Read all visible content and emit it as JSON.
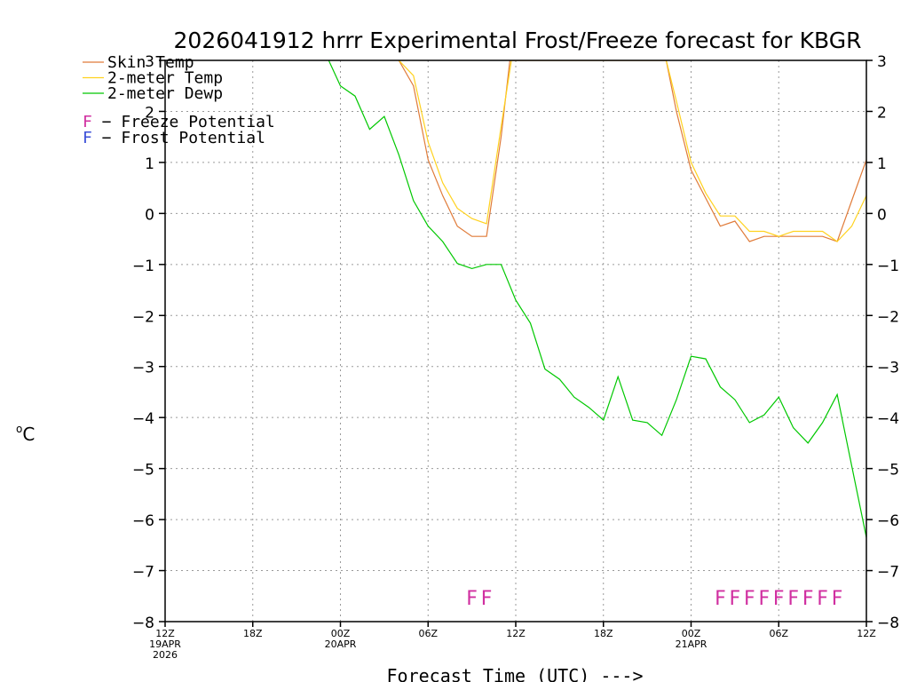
{
  "chart_data": {
    "type": "line",
    "title": "2026041912 hrrr Experimental Frost/Freeze forecast for KBGR",
    "xlabel": "Forecast Time (UTC) --->",
    "ylabel": "°C",
    "ylabel_base": "C",
    "ylabel_sup": "o",
    "ylim": [
      -8,
      3
    ],
    "xlim": [
      0,
      48
    ],
    "grid": true,
    "y_ticks": [
      "3",
      "2",
      "1",
      "0",
      "−1",
      "−2",
      "−3",
      "−4",
      "−5",
      "−6",
      "−7",
      "−8"
    ],
    "y_tick_values": [
      3,
      2,
      1,
      0,
      -1,
      -2,
      -3,
      -4,
      -5,
      -6,
      -7,
      -8
    ],
    "x_ticks": [
      {
        "hour": 0,
        "lines": [
          "12Z",
          "19APR",
          "2026"
        ]
      },
      {
        "hour": 6,
        "lines": [
          "18Z"
        ]
      },
      {
        "hour": 12,
        "lines": [
          "00Z",
          "20APR"
        ]
      },
      {
        "hour": 18,
        "lines": [
          "06Z"
        ]
      },
      {
        "hour": 24,
        "lines": [
          "12Z"
        ]
      },
      {
        "hour": 30,
        "lines": [
          "18Z"
        ]
      },
      {
        "hour": 36,
        "lines": [
          "00Z",
          "21APR"
        ]
      },
      {
        "hour": 42,
        "lines": [
          "06Z"
        ]
      },
      {
        "hour": 48,
        "lines": [
          "12Z"
        ]
      }
    ],
    "series": [
      {
        "name": "Skin Temp",
        "color": "#e07b39",
        "points": [
          [
            16,
            3
          ],
          [
            17,
            2.5
          ],
          [
            18,
            1.05
          ],
          [
            19,
            0.35
          ],
          [
            20,
            -0.25
          ],
          [
            21,
            -0.45
          ],
          [
            22,
            -0.45
          ],
          [
            23,
            1.5
          ],
          [
            23.6,
            3
          ],
          [
            34.3,
            3
          ],
          [
            35,
            2.0
          ],
          [
            36,
            0.85
          ],
          [
            37,
            0.3
          ],
          [
            38,
            -0.25
          ],
          [
            39,
            -0.15
          ],
          [
            40,
            -0.55
          ],
          [
            41,
            -0.45
          ],
          [
            42,
            -0.45
          ],
          [
            43,
            -0.45
          ],
          [
            44,
            -0.45
          ],
          [
            45,
            -0.45
          ],
          [
            46,
            -0.55
          ],
          [
            47,
            0.25
          ],
          [
            48,
            1.05
          ]
        ]
      },
      {
        "name": "2-meter Temp",
        "color": "#ffd21f",
        "points": [
          [
            16,
            3
          ],
          [
            17,
            2.7
          ],
          [
            18,
            1.4
          ],
          [
            19,
            0.6
          ],
          [
            20,
            0.1
          ],
          [
            21,
            -0.1
          ],
          [
            22,
            -0.2
          ],
          [
            23,
            1.7
          ],
          [
            23.7,
            3
          ],
          [
            34.3,
            3
          ],
          [
            35,
            2.2
          ],
          [
            36,
            1.0
          ],
          [
            37,
            0.4
          ],
          [
            38,
            -0.05
          ],
          [
            39,
            -0.05
          ],
          [
            40,
            -0.35
          ],
          [
            41,
            -0.35
          ],
          [
            42,
            -0.45
          ],
          [
            43,
            -0.35
          ],
          [
            44,
            -0.35
          ],
          [
            45,
            -0.35
          ],
          [
            46,
            -0.55
          ],
          [
            47,
            -0.25
          ],
          [
            48,
            0.35
          ]
        ]
      },
      {
        "name": "2-meter Dewp",
        "color": "#00c800",
        "points": [
          [
            11.2,
            3
          ],
          [
            12,
            2.5
          ],
          [
            13,
            2.3
          ],
          [
            14,
            1.65
          ],
          [
            15,
            1.9
          ],
          [
            16,
            1.15
          ],
          [
            17,
            0.25
          ],
          [
            18,
            -0.25
          ],
          [
            19,
            -0.55
          ],
          [
            20,
            -0.98
          ],
          [
            21,
            -1.08
          ],
          [
            22,
            -1.0
          ],
          [
            23,
            -1.0
          ],
          [
            24,
            -1.7
          ],
          [
            25,
            -2.15
          ],
          [
            26,
            -3.05
          ],
          [
            27,
            -3.25
          ],
          [
            28,
            -3.6
          ],
          [
            29,
            -3.8
          ],
          [
            30,
            -4.05
          ],
          [
            31,
            -3.2
          ],
          [
            32,
            -4.05
          ],
          [
            33,
            -4.1
          ],
          [
            34,
            -4.35
          ],
          [
            35,
            -3.65
          ],
          [
            36,
            -2.8
          ],
          [
            37,
            -2.85
          ],
          [
            38,
            -3.4
          ],
          [
            39,
            -3.65
          ],
          [
            40,
            -4.1
          ],
          [
            41,
            -3.95
          ],
          [
            42,
            -3.6
          ],
          [
            43,
            -4.2
          ],
          [
            44,
            -4.5
          ],
          [
            45,
            -4.1
          ],
          [
            46,
            -3.55
          ],
          [
            47,
            -4.95
          ],
          [
            48,
            -6.35
          ]
        ]
      }
    ],
    "legend": [
      {
        "label": "Skin Temp",
        "color": "#e07b39"
      },
      {
        "label": "2-meter Temp",
        "color": "#ffd21f"
      },
      {
        "label": "2-meter Dewp",
        "color": "#00c800"
      }
    ],
    "potential_legend": [
      {
        "letter": "F",
        "text": " − Freeze Potential",
        "color": "#d02fa0"
      },
      {
        "letter": "F",
        "text": " − Frost Potential",
        "color": "#3b4fd8"
      }
    ],
    "freeze_flags": {
      "color": "#d02fa0",
      "letter": "F",
      "hours": [
        21,
        22,
        38,
        39,
        40,
        41,
        42,
        43,
        44,
        45,
        46
      ]
    }
  }
}
